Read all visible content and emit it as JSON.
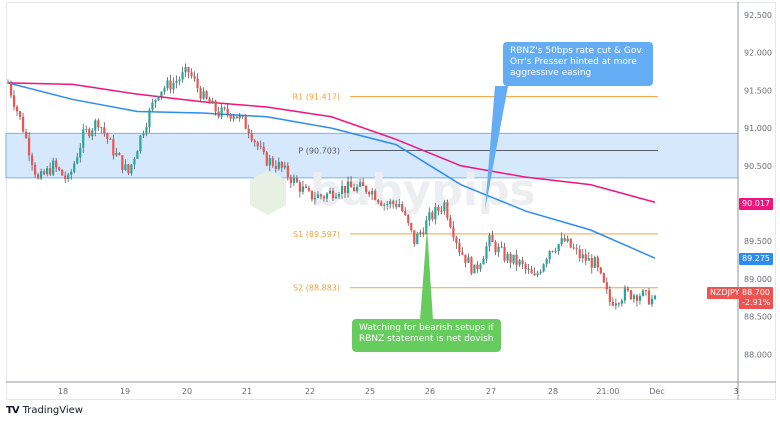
{
  "symbol": "NZDJPY",
  "price_axis": {
    "ticks": [
      "92.500",
      "92.000",
      "91.500",
      "91.000",
      "90.500",
      "89.500",
      "89.000",
      "88.500",
      "88.000"
    ],
    "tick_values": [
      92.5,
      92.0,
      91.5,
      91.0,
      90.5,
      89.5,
      89.0,
      88.5,
      88.0
    ]
  },
  "time_axis": {
    "ticks": [
      "18",
      "19",
      "20",
      "21",
      "22",
      "25",
      "26",
      "27",
      "28",
      "21:00",
      "Dec",
      "3"
    ]
  },
  "tags": {
    "ma_slow": {
      "value": "90.017",
      "color": "#f0157e"
    },
    "ma_fast": {
      "value": "89.275",
      "color": "#2d8cf0"
    },
    "last": {
      "symbol": "NZDJPY",
      "value": "88.700",
      "change": "-2.91%",
      "color": "#ef5350"
    }
  },
  "zone": {
    "from": 90.34,
    "to": 90.93,
    "color": "#cfe4fb"
  },
  "levels": [
    {
      "label": "R1 (91.417)",
      "value": 91.417,
      "color": "#f5a13a"
    },
    {
      "label": "P (90.703)",
      "value": 90.703,
      "color": "#555a64"
    },
    {
      "label": "S1 (89.597)",
      "value": 89.597,
      "color": "#f5a13a"
    },
    {
      "label": "S2 (88.883)",
      "value": 88.883,
      "color": "#f5a13a"
    }
  ],
  "price_path": [
    91.6,
    91.0,
    90.3,
    90.5,
    90.3,
    90.9,
    91.1,
    90.7,
    90.4,
    91.0,
    91.5,
    91.6,
    91.75,
    91.4,
    91.2,
    91.2,
    91.0,
    90.6,
    90.5,
    90.3,
    90.1,
    90.1,
    90.2,
    90.2,
    90.2,
    90.0,
    90.0,
    89.5,
    89.8,
    90.0,
    89.4,
    89.1,
    89.5,
    89.3,
    89.2,
    89.0,
    89.4,
    89.5,
    89.3,
    89.2,
    88.7,
    88.8,
    88.8,
    88.7
  ],
  "ma_slow_path": [
    91.6,
    91.58,
    91.45,
    91.35,
    91.28,
    91.15,
    90.85,
    90.5,
    90.35,
    90.25,
    90.017
  ],
  "ma_fast_path": [
    91.6,
    91.38,
    91.22,
    91.2,
    91.15,
    91.0,
    90.78,
    90.25,
    89.9,
    89.65,
    89.275
  ],
  "colors": {
    "up": "#26a69a",
    "down": "#ef5350"
  },
  "callouts": {
    "rbnz_cut": "RBNZ's 50bps rate cut & Gov. Orr's Presser hinted at more aggressive easing",
    "watching": "Watching for bearish setups if RBNZ statement is net dovish"
  },
  "watermark": "babypips",
  "footer": {
    "brand": "TradingView"
  }
}
